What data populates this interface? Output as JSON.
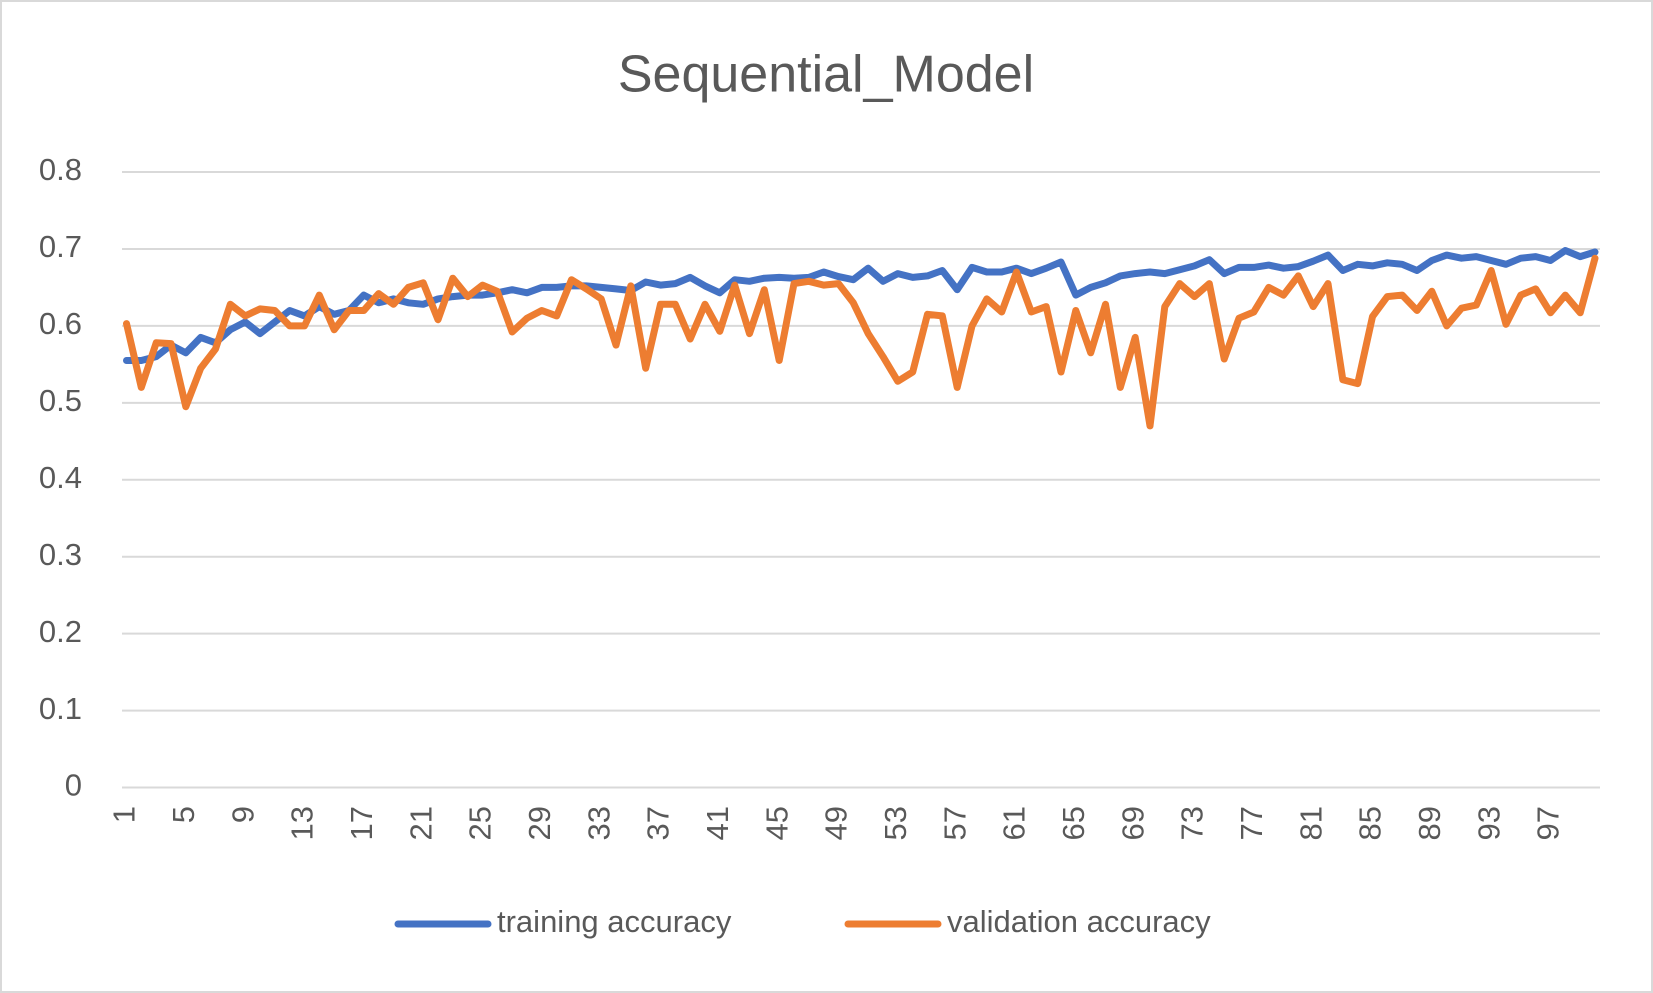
{
  "chart_data": {
    "type": "line",
    "title": "Sequential_Model",
    "categories": [
      1,
      null,
      null,
      null,
      5,
      null,
      null,
      null,
      9,
      null,
      null,
      null,
      13,
      null,
      null,
      null,
      17,
      null,
      null,
      null,
      21,
      null,
      null,
      null,
      25,
      null,
      null,
      null,
      29,
      null,
      null,
      null,
      33,
      null,
      null,
      null,
      37,
      null,
      null,
      null,
      41,
      null,
      null,
      null,
      45,
      null,
      null,
      null,
      49,
      null,
      null,
      null,
      53,
      null,
      null,
      null,
      57,
      null,
      null,
      null,
      61,
      null,
      null,
      null,
      65,
      null,
      null,
      null,
      69,
      null,
      null,
      null,
      73,
      null,
      null,
      null,
      77,
      null,
      null,
      null,
      81,
      null,
      null,
      null,
      85,
      null,
      null,
      null,
      89,
      null,
      null,
      null,
      93,
      null,
      null,
      null,
      97,
      null,
      null,
      null
    ],
    "series": [
      {
        "name": "training accuracy",
        "color": "#4472c4",
        "values": [
          0.555,
          0.555,
          0.56,
          0.575,
          0.565,
          0.585,
          0.578,
          0.595,
          0.605,
          0.59,
          0.605,
          0.62,
          0.613,
          0.625,
          0.615,
          0.62,
          0.64,
          0.63,
          0.635,
          0.63,
          0.628,
          0.635,
          0.638,
          0.64,
          0.64,
          0.643,
          0.647,
          0.643,
          0.65,
          0.65,
          0.652,
          0.652,
          0.65,
          0.648,
          0.646,
          0.657,
          0.653,
          0.655,
          0.663,
          0.652,
          0.643,
          0.66,
          0.658,
          0.662,
          0.663,
          0.662,
          0.663,
          0.67,
          0.664,
          0.66,
          0.675,
          0.658,
          0.668,
          0.663,
          0.665,
          0.672,
          0.647,
          0.676,
          0.67,
          0.67,
          0.675,
          0.668,
          0.675,
          0.683,
          0.64,
          0.65,
          0.656,
          0.665,
          0.668,
          0.67,
          0.668,
          0.673,
          0.678,
          0.686,
          0.668,
          0.676,
          0.676,
          0.679,
          0.675,
          0.677,
          0.684,
          0.692,
          0.672,
          0.68,
          0.678,
          0.682,
          0.68,
          0.672,
          0.685,
          0.692,
          0.688,
          0.69,
          0.685,
          0.68,
          0.688,
          0.69,
          0.685,
          0.698,
          0.69,
          0.696
        ]
      },
      {
        "name": "validation accuracy",
        "color": "#ed7d31",
        "values": [
          0.603,
          0.52,
          0.578,
          0.577,
          0.495,
          0.545,
          0.57,
          0.628,
          0.613,
          0.622,
          0.62,
          0.6,
          0.6,
          0.64,
          0.595,
          0.62,
          0.62,
          0.642,
          0.628,
          0.65,
          0.656,
          0.608,
          0.662,
          0.638,
          0.653,
          0.645,
          0.592,
          0.61,
          0.62,
          0.613,
          0.66,
          0.648,
          0.635,
          0.575,
          0.652,
          0.545,
          0.628,
          0.628,
          0.583,
          0.628,
          0.593,
          0.653,
          0.59,
          0.647,
          0.555,
          0.655,
          0.658,
          0.653,
          0.655,
          0.63,
          0.59,
          0.56,
          0.528,
          0.54,
          0.615,
          0.613,
          0.52,
          0.6,
          0.635,
          0.618,
          0.67,
          0.618,
          0.625,
          0.54,
          0.62,
          0.565,
          0.628,
          0.52,
          0.585,
          0.47,
          0.625,
          0.655,
          0.638,
          0.655,
          0.557,
          0.61,
          0.618,
          0.65,
          0.64,
          0.665,
          0.625,
          0.655,
          0.53,
          0.525,
          0.612,
          0.638,
          0.64,
          0.62,
          0.645,
          0.6,
          0.623,
          0.627,
          0.672,
          0.602,
          0.64,
          0.648,
          0.617,
          0.64,
          0.617,
          0.688
        ]
      }
    ],
    "ylim": [
      0,
      0.8
    ],
    "yticks": [
      0,
      0.1,
      0.2,
      0.3,
      0.4,
      0.5,
      0.6,
      0.7,
      0.8
    ],
    "grid": true,
    "legend": "bottom"
  }
}
